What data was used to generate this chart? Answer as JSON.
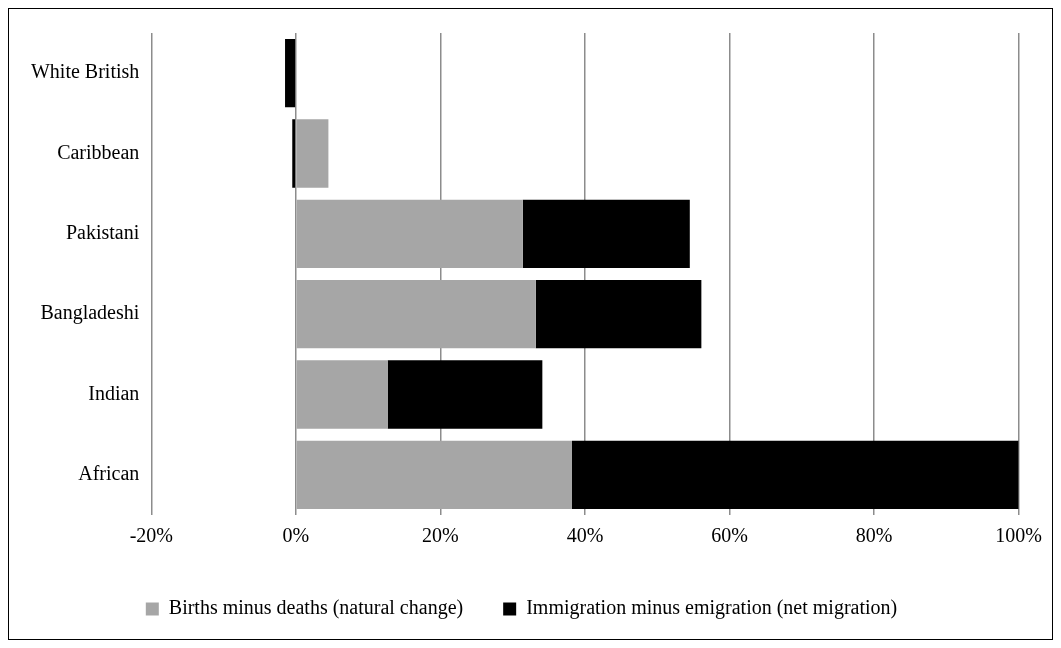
{
  "chart_data": {
    "type": "bar",
    "orientation": "horizontal",
    "stacked": true,
    "categories": [
      "White British",
      "Caribbean",
      "Pakistani",
      "Bangladeshi",
      "Indian",
      "African"
    ],
    "series": [
      {
        "name": "Births minus deaths (natural change)",
        "color": "#a6a6a6",
        "values": [
          0,
          4.5,
          31.4,
          33.2,
          12.7,
          38.2
        ]
      },
      {
        "name": "Immigration minus emigration (net migration)",
        "color": "#000000",
        "values": [
          -1.5,
          -0.5,
          23.1,
          22.9,
          21.4,
          61.8
        ]
      }
    ],
    "xlim": [
      -20,
      100
    ],
    "xticks": [
      {
        "value": -20,
        "label": "-20%"
      },
      {
        "value": 0,
        "label": "0%"
      },
      {
        "value": 20,
        "label": "20%"
      },
      {
        "value": 40,
        "label": "40%"
      },
      {
        "value": 60,
        "label": "60%"
      },
      {
        "value": 80,
        "label": "80%"
      },
      {
        "value": 100,
        "label": "100%"
      }
    ],
    "grid": "x",
    "legend": "bottom"
  }
}
